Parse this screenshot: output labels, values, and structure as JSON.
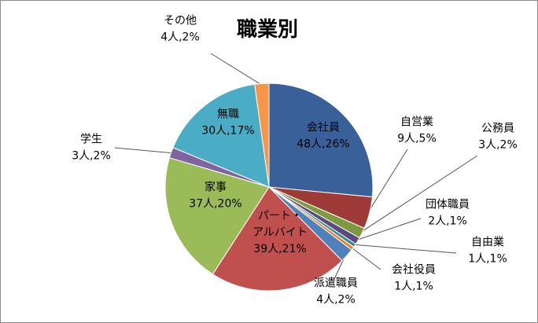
{
  "chart_data": {
    "type": "pie",
    "title": "職業別",
    "slices": [
      {
        "name": "会社員",
        "count_label": "48人,26%",
        "value": 48,
        "percent": 26,
        "color": "#3A6099"
      },
      {
        "name": "自営業",
        "count_label": "9人,5%",
        "value": 9,
        "percent": 5,
        "color": "#9E3B38"
      },
      {
        "name": "公務員",
        "count_label": "3人,2%",
        "value": 3,
        "percent": 2,
        "color": "#7E9A3F"
      },
      {
        "name": "団体職員",
        "count_label": "2人,1%",
        "value": 2,
        "percent": 1,
        "color": "#5E4A82"
      },
      {
        "name": "自由業",
        "count_label": "1人,1%",
        "value": 1,
        "percent": 1,
        "color": "#2A8BA4"
      },
      {
        "name": "会社役員",
        "count_label": "1人,1%",
        "value": 1,
        "percent": 1,
        "color": "#E98427"
      },
      {
        "name": "派遣職員",
        "count_label": "4人,2%",
        "value": 4,
        "percent": 2,
        "color": "#4F81BD"
      },
      {
        "name": "パート・\nアルバイト",
        "count_label": "39人,21%",
        "value": 39,
        "percent": 21,
        "color": "#C0504D"
      },
      {
        "name": "家事",
        "count_label": "37人,20%",
        "value": 37,
        "percent": 20,
        "color": "#9BBB59"
      },
      {
        "name": "学生",
        "count_label": "3人,2%",
        "value": 3,
        "percent": 2,
        "color": "#8064A2"
      },
      {
        "name": "無職",
        "count_label": "30人,17%",
        "value": 30,
        "percent": 17,
        "color": "#4BACC6"
      },
      {
        "name": "その他",
        "count_label": "4人,2%",
        "value": 4,
        "percent": 2,
        "color": "#F79646"
      }
    ]
  }
}
